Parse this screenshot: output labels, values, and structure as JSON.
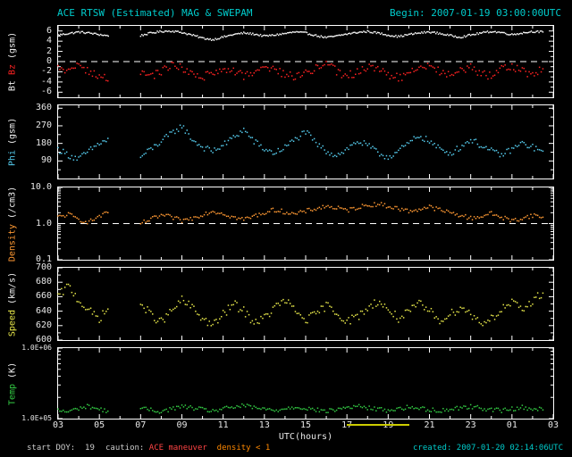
{
  "header": {
    "title": "ACE RTSW (Estimated) MAG & SWEPAM",
    "begin": "Begin: 2007-01-19 03:00:00UTC"
  },
  "footer": {
    "start_doy": "start DOY:  19",
    "caution_label": "caution: ",
    "caution_maneuver": "ACE maneuver",
    "caution_density": "  density < 1",
    "created": "created: 2007-01-20 02:14:06UTC"
  },
  "axis": {
    "xlabel": "UTC(hours)",
    "xticks": [
      {
        "h": 3,
        "label": "03"
      },
      {
        "h": 5,
        "label": "05"
      },
      {
        "h": 7,
        "label": "07"
      },
      {
        "h": 9,
        "label": "09"
      },
      {
        "h": 11,
        "label": "11"
      },
      {
        "h": 13,
        "label": "13"
      },
      {
        "h": 15,
        "label": "15"
      },
      {
        "h": 17,
        "label": "17"
      },
      {
        "h": 19,
        "label": "19"
      },
      {
        "h": 21,
        "label": "21"
      },
      {
        "h": 23,
        "label": "23"
      },
      {
        "h": 25,
        "label": "01"
      },
      {
        "h": 27,
        "label": "03"
      }
    ],
    "xminor": [
      4,
      6,
      8,
      10,
      12,
      14,
      16,
      18,
      20,
      22,
      24,
      26
    ],
    "caution_bar_hours": [
      17,
      20
    ]
  },
  "colors": {
    "background": "#000000",
    "frame": "#ffffff",
    "title_cyan": "#00cccc",
    "bt": "#f2f2f2",
    "bz": "#ff2222",
    "phi": "#55ccee",
    "density": "#ff9933",
    "speed": "#e8e84a",
    "temp": "#33cc44",
    "caution_red": "#ff4444",
    "caution_orange": "#ff8800",
    "bar_yellow": "#cccc00"
  },
  "chart_data": {
    "type": "scatter",
    "title": "ACE RTSW (Estimated) MAG & SWEPAM",
    "x_hours": [
      3,
      3.5,
      4,
      4.5,
      5,
      5.5,
      6,
      6.5,
      7,
      7.5,
      8,
      8.5,
      9,
      9.5,
      10,
      10.5,
      11,
      11.5,
      12,
      12.5,
      13,
      13.5,
      14,
      14.5,
      15,
      15.5,
      16,
      16.5,
      17,
      17.5,
      18,
      18.5,
      19,
      19.5,
      20,
      20.5,
      21,
      21.5,
      22,
      22.5,
      23,
      23.5,
      24,
      24.5,
      25,
      25.5,
      26,
      26.5
    ],
    "xlim": [
      3,
      27
    ],
    "panels": [
      {
        "name": "bt-bz",
        "scale": "linear",
        "ylim": [
          -7,
          7
        ],
        "dashed_y": 0,
        "ylabel_parts": [
          {
            "text": "Bt ",
            "color": "#f2f2f2"
          },
          {
            "text": "Bz ",
            "color": "#ff2222"
          },
          {
            "text": "(gsm)",
            "color": "#f2f2f2"
          }
        ],
        "yticks": [
          {
            "v": 6,
            "label": "6"
          },
          {
            "v": 4,
            "label": "4"
          },
          {
            "v": 2,
            "label": "2"
          },
          {
            "v": 0,
            "label": "0"
          },
          {
            "v": -2,
            "label": "-2"
          },
          {
            "v": -4,
            "label": "-4"
          },
          {
            "v": -6,
            "label": "-6"
          }
        ],
        "yminor": [
          5,
          3,
          1,
          -1,
          -3,
          -5
        ],
        "series": [
          {
            "name": "Bt",
            "color": "#f2f2f2",
            "jitter": 0.18,
            "sub": 8,
            "y": [
              5.2,
              5.5,
              5.8,
              5.6,
              5.3,
              5.0,
              null,
              null,
              5.1,
              5.6,
              5.9,
              6.0,
              5.7,
              5.2,
              4.6,
              4.3,
              4.8,
              5.3,
              5.6,
              5.4,
              5.0,
              5.2,
              5.5,
              5.8,
              5.6,
              5.1,
              4.7,
              5.0,
              5.4,
              5.7,
              5.9,
              5.6,
              5.2,
              4.9,
              5.3,
              5.6,
              5.8,
              5.5,
              5.1,
              4.8,
              5.2,
              5.6,
              5.9,
              5.7,
              5.3,
              5.6,
              5.9,
              5.8
            ]
          },
          {
            "name": "Bz",
            "color": "#ff2222",
            "jitter": 0.8,
            "sub": 6,
            "y": [
              -1.5,
              -2.2,
              -0.8,
              -1.9,
              -2.8,
              -3.2,
              null,
              null,
              -2.5,
              -3.0,
              -1.8,
              -0.5,
              -1.4,
              -2.6,
              -3.1,
              -2.3,
              -1.1,
              -1.9,
              -2.7,
              -2.0,
              -0.9,
              -1.6,
              -2.4,
              -3.0,
              -2.2,
              -1.3,
              -0.7,
              -1.8,
              -2.9,
              -2.1,
              -1.0,
              -1.7,
              -2.5,
              -3.2,
              -2.4,
              -1.5,
              -0.8,
              -1.9,
              -2.8,
              -2.0,
              -1.2,
              -2.2,
              -3.0,
              -1.6,
              -0.9,
              -1.8,
              -2.6,
              -1.4
            ]
          }
        ]
      },
      {
        "name": "phi",
        "scale": "linear",
        "ylim": [
          0,
          375
        ],
        "dashed_y": null,
        "ylabel_parts": [
          {
            "text": "Phi ",
            "color": "#55ccee"
          },
          {
            "text": "(gsm)",
            "color": "#f2f2f2"
          }
        ],
        "yticks": [
          {
            "v": 360,
            "label": "360"
          },
          {
            "v": 270,
            "label": "270"
          },
          {
            "v": 180,
            "label": "180"
          },
          {
            "v": 90,
            "label": "90"
          }
        ],
        "yminor": [
          315,
          225,
          135,
          45
        ],
        "series": [
          {
            "name": "Phi",
            "color": "#55ccee",
            "jitter": 16,
            "sub": 6,
            "y": [
              150,
              120,
              100,
              140,
              180,
              200,
              null,
              null,
              110,
              150,
              190,
              230,
              270,
              200,
              160,
              140,
              170,
              210,
              250,
              190,
              150,
              130,
              160,
              200,
              240,
              180,
              140,
              120,
              150,
              190,
              170,
              130,
              110,
              140,
              180,
              220,
              190,
              150,
              130,
              160,
              200,
              170,
              140,
              120,
              150,
              180,
              160,
              140
            ]
          }
        ]
      },
      {
        "name": "density",
        "scale": "log",
        "ylim": [
          0.1,
          10
        ],
        "dashed_y": 1,
        "ylabel_parts": [
          {
            "text": "Density ",
            "color": "#ff9933"
          },
          {
            "text": "(/cm3)",
            "color": "#f2f2f2"
          }
        ],
        "yticks": [
          {
            "v": 10,
            "label": "10.0"
          },
          {
            "v": 1,
            "label": "1.0"
          },
          {
            "v": 0.1,
            "label": "0.1"
          }
        ],
        "yminor": [
          0.2,
          0.3,
          0.4,
          0.5,
          0.6,
          0.7,
          0.8,
          0.9,
          2,
          3,
          4,
          5,
          6,
          7,
          8,
          9
        ],
        "series": [
          {
            "name": "Density",
            "color": "#ff9933",
            "jitter": 0.06,
            "sub": 6,
            "y": [
              1.5,
              1.8,
              1.3,
              1.1,
              1.6,
              2.0,
              null,
              null,
              1.0,
              1.3,
              1.7,
              1.5,
              1.2,
              1.4,
              1.8,
              2.2,
              1.9,
              1.5,
              1.3,
              1.6,
              2.0,
              2.4,
              2.1,
              1.8,
              2.2,
              2.6,
              3.0,
              2.7,
              2.3,
              2.8,
              3.2,
              3.5,
              3.0,
              2.6,
              2.2,
              2.5,
              2.9,
              2.4,
              2.0,
              1.7,
              1.4,
              1.6,
              1.9,
              1.5,
              1.2,
              1.4,
              1.7,
              1.5
            ]
          }
        ]
      },
      {
        "name": "speed",
        "scale": "linear",
        "ylim": [
          600,
          700
        ],
        "dashed_y": null,
        "ylabel_parts": [
          {
            "text": "Speed ",
            "color": "#e8e84a"
          },
          {
            "text": "(km/s)",
            "color": "#f2f2f2"
          }
        ],
        "yticks": [
          {
            "v": 700,
            "label": "700"
          },
          {
            "v": 680,
            "label": "680"
          },
          {
            "v": 660,
            "label": "660"
          },
          {
            "v": 640,
            "label": "640"
          },
          {
            "v": 620,
            "label": "620"
          },
          {
            "v": 600,
            "label": "600"
          }
        ],
        "yminor": [
          690,
          670,
          650,
          630,
          610
        ],
        "series": [
          {
            "name": "Speed",
            "color": "#e8e84a",
            "jitter": 6,
            "sub": 6,
            "y": [
              660,
              675,
              655,
              640,
              630,
              645,
              null,
              null,
              650,
              635,
              625,
              640,
              655,
              645,
              630,
              620,
              635,
              650,
              640,
              625,
              630,
              645,
              655,
              640,
              628,
              635,
              648,
              638,
              626,
              632,
              644,
              654,
              642,
              630,
              638,
              650,
              640,
              628,
              635,
              646,
              636,
              624,
              630,
              642,
              652,
              640,
              655,
              665
            ]
          }
        ]
      },
      {
        "name": "temp",
        "scale": "log",
        "ylim": [
          100000,
          1000000
        ],
        "dashed_y": null,
        "tick_small": true,
        "ylabel_parts": [
          {
            "text": "Temp ",
            "color": "#33cc44"
          },
          {
            "text": "(K)",
            "color": "#f2f2f2"
          }
        ],
        "yticks": [
          {
            "v": 1000000,
            "label": "1.0E+06"
          },
          {
            "v": 100000,
            "label": "1.0E+05"
          }
        ],
        "yminor": [
          200000,
          300000,
          400000,
          500000,
          600000,
          700000,
          800000,
          900000
        ],
        "series": [
          {
            "name": "Temp",
            "color": "#33cc44",
            "jitter": 0.03,
            "sub": 6,
            "y": [
              130000,
              125000,
              140000,
              150000,
              135000,
              128000,
              null,
              null,
              140000,
              132000,
              126000,
              138000,
              148000,
              142000,
              134000,
              129000,
              137000,
              146000,
              152000,
              143000,
              136000,
              130000,
              139000,
              147000,
              141000,
              133000,
              127000,
              135000,
              144000,
              150000,
              142000,
              136000,
              131000,
              138000,
              145000,
              140000,
              134000,
              129000,
              136000,
              143000,
              148000,
              141000,
              135000,
              130000,
              137000,
              144000,
              139000,
              133000
            ]
          }
        ]
      }
    ]
  }
}
